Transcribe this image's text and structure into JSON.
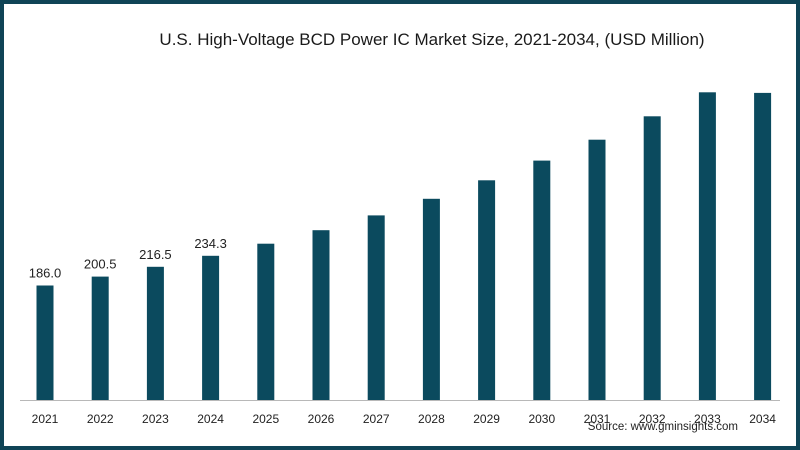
{
  "colors": {
    "bar": "#0b4a5e",
    "border": "#0f4456",
    "axis": "#b8b8b8"
  },
  "source": "Source: www.gminsights.com",
  "chart_data": {
    "type": "bar",
    "title": "U.S. High-Voltage BCD Power IC Market Size, 2021-2034, (USD Million)",
    "xlabel": "",
    "ylabel": "",
    "categories": [
      "2021",
      "2022",
      "2023",
      "2024",
      "2025",
      "2026",
      "2027",
      "2028",
      "2029",
      "2030",
      "2031",
      "2032",
      "2033",
      "2034"
    ],
    "values": [
      186.0,
      200.5,
      216.5,
      234.3,
      254,
      276,
      300,
      327,
      357,
      389,
      423,
      461,
      500,
      499
    ],
    "data_labels": [
      "186.0",
      "200.5",
      "216.5",
      "234.3",
      "",
      "",
      "",
      "",
      "",
      "",
      "",
      "",
      "",
      ""
    ],
    "ylim": [
      0,
      520
    ],
    "grid": false,
    "legend": "none"
  }
}
